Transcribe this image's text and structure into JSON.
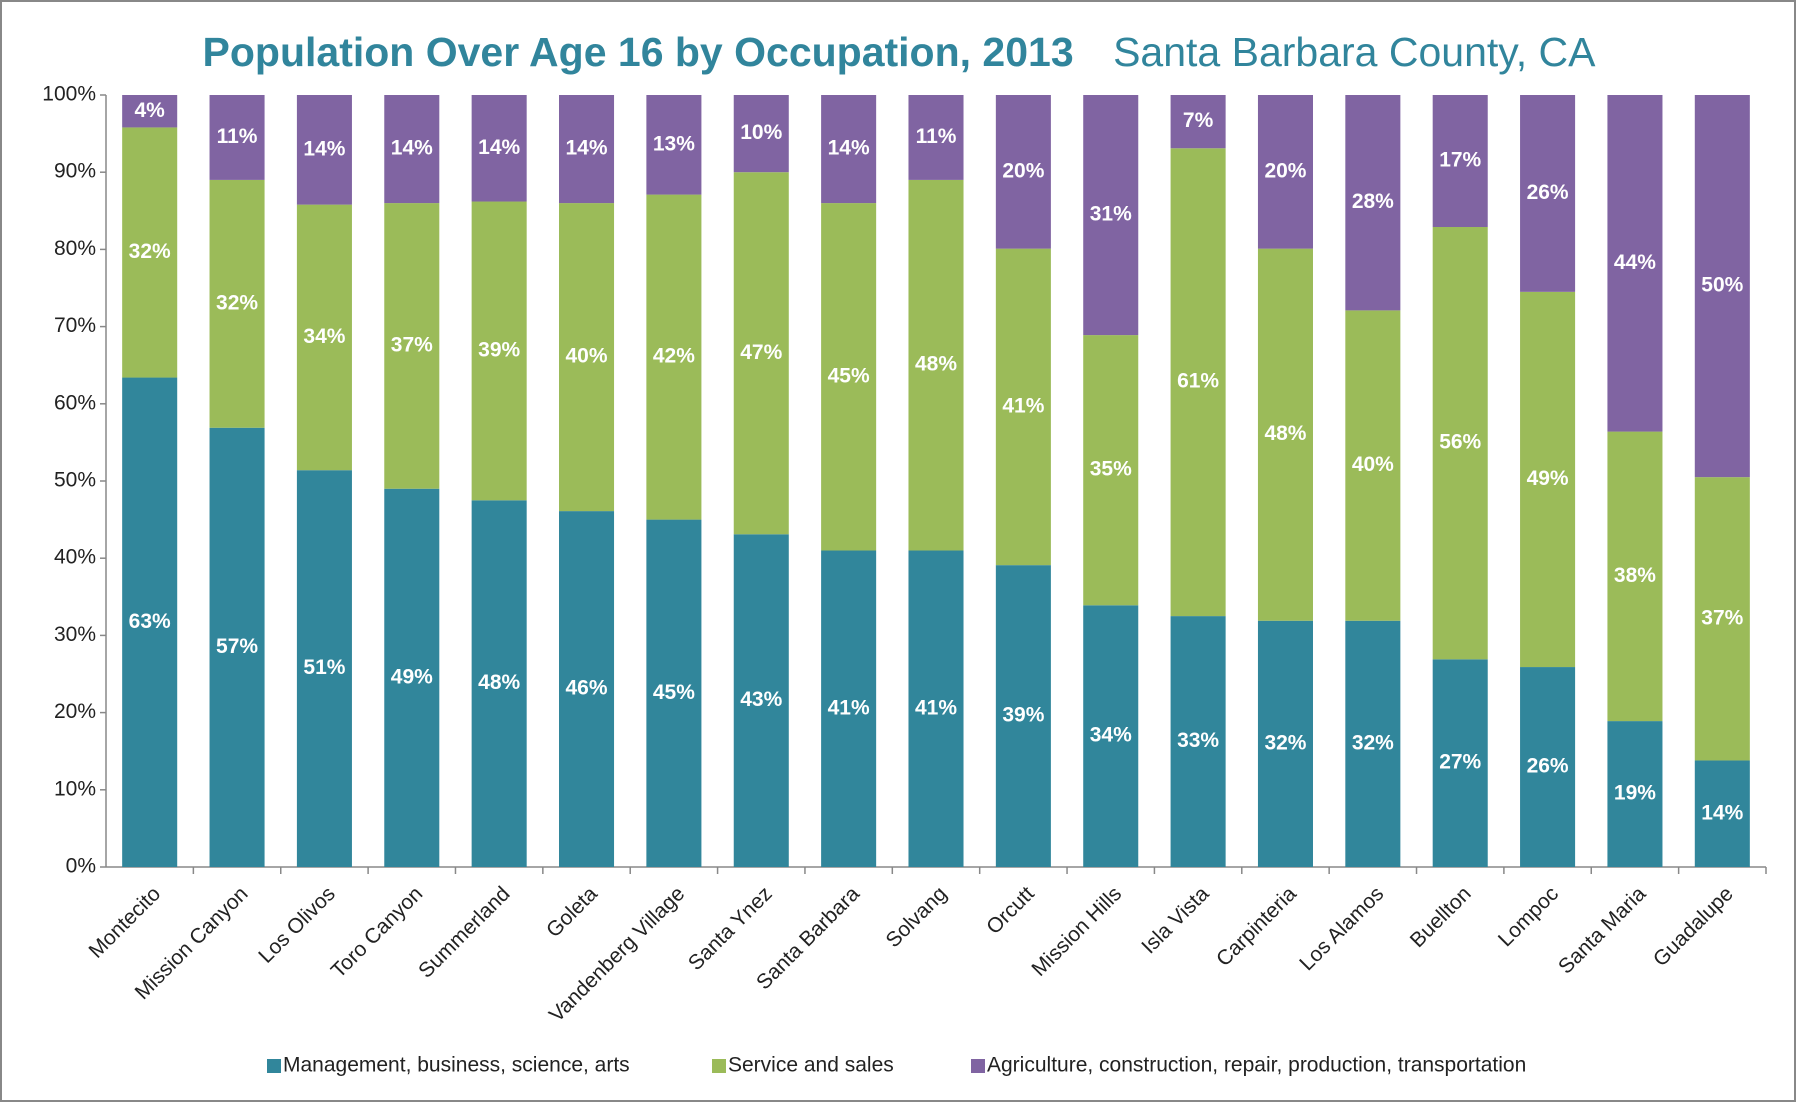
{
  "chart_data": {
    "type": "bar",
    "stacked": true,
    "title": "Population Over Age 16 by Occupation, 2013",
    "subtitle": "Santa Barbara County, CA",
    "categories": [
      "Montecito",
      "Mission Canyon",
      "Los Olivos",
      "Toro Canyon",
      "Summerland",
      "Goleta",
      "Vandenberg Village",
      "Santa Ynez",
      "Santa Barbara",
      "Solvang",
      "Orcutt",
      "Mission Hills",
      "Isla Vista",
      "Carpinteria",
      "Los Alamos",
      "Buellton",
      "Lompoc",
      "Santa Maria",
      "Guadalupe"
    ],
    "series": [
      {
        "name": "Management, business, science, arts",
        "color": "#31869b",
        "values": [
          63.4,
          56.9,
          51.4,
          49.0,
          47.5,
          46.1,
          45.0,
          43.1,
          41.0,
          41.0,
          39.1,
          33.9,
          32.5,
          31.9,
          31.9,
          26.9,
          25.9,
          18.9,
          13.8
        ],
        "value_labels": [
          "63%",
          "57%",
          "51%",
          "49%",
          "48%",
          "46%",
          "45%",
          "43%",
          "41%",
          "41%",
          "39%",
          "34%",
          "33%",
          "32%",
          "32%",
          "27%",
          "26%",
          "19%",
          "14%"
        ]
      },
      {
        "name": "Service and sales",
        "color": "#9bbb59",
        "values": [
          32.4,
          32.1,
          34.4,
          37.0,
          38.7,
          39.9,
          42.1,
          46.9,
          45.0,
          48.0,
          41.0,
          35.0,
          60.6,
          48.2,
          40.2,
          56.0,
          48.6,
          37.5,
          36.7
        ],
        "value_labels": [
          "32%",
          "32%",
          "34%",
          "37%",
          "39%",
          "40%",
          "42%",
          "47%",
          "45%",
          "48%",
          "41%",
          "35%",
          "61%",
          "48%",
          "40%",
          "56%",
          "49%",
          "38%",
          "37%"
        ]
      },
      {
        "name": "Agriculture, construction, repair, production, transportation",
        "color": "#8064a2",
        "values": [
          4.2,
          11.0,
          14.2,
          14.0,
          13.8,
          14.0,
          12.9,
          10.0,
          14.0,
          11.0,
          19.9,
          31.1,
          6.9,
          19.9,
          27.9,
          17.1,
          25.5,
          43.6,
          49.5
        ],
        "value_labels": [
          "4%",
          "11%",
          "14%",
          "14%",
          "14%",
          "14%",
          "13%",
          "10%",
          "14%",
          "11%",
          "20%",
          "31%",
          "7%",
          "20%",
          "28%",
          "17%",
          "26%",
          "44%",
          "50%"
        ]
      }
    ],
    "ylim": [
      0,
      100
    ],
    "yticks": [
      {
        "value": 0,
        "label": "0%"
      },
      {
        "value": 10,
        "label": "10%"
      },
      {
        "value": 20,
        "label": "20%"
      },
      {
        "value": 30,
        "label": "30%"
      },
      {
        "value": 40,
        "label": "40%"
      },
      {
        "value": 50,
        "label": "50%"
      },
      {
        "value": 60,
        "label": "60%"
      },
      {
        "value": 70,
        "label": "70%"
      },
      {
        "value": 80,
        "label": "80%"
      },
      {
        "value": 90,
        "label": "90%"
      },
      {
        "value": 100,
        "label": "100%"
      }
    ],
    "legend": "bottom"
  }
}
